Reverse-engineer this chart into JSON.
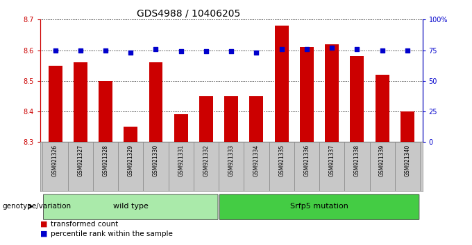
{
  "title": "GDS4988 / 10406205",
  "samples": [
    "GSM921326",
    "GSM921327",
    "GSM921328",
    "GSM921329",
    "GSM921330",
    "GSM921331",
    "GSM921332",
    "GSM921333",
    "GSM921334",
    "GSM921335",
    "GSM921336",
    "GSM921337",
    "GSM921338",
    "GSM921339",
    "GSM921340"
  ],
  "transformed_counts": [
    8.55,
    8.56,
    8.5,
    8.35,
    8.56,
    8.39,
    8.45,
    8.45,
    8.45,
    8.68,
    8.61,
    8.62,
    8.58,
    8.52,
    8.4
  ],
  "percentile_ranks": [
    75,
    75,
    75,
    73,
    76,
    74,
    74,
    74,
    73,
    76,
    76,
    77,
    76,
    75,
    75
  ],
  "ylim_left": [
    8.3,
    8.7
  ],
  "ylim_right": [
    0,
    100
  ],
  "right_ticks": [
    0,
    25,
    50,
    75,
    100
  ],
  "right_tick_labels": [
    "0",
    "25",
    "50",
    "75",
    "100%"
  ],
  "left_ticks": [
    8.3,
    8.4,
    8.5,
    8.6,
    8.7
  ],
  "bar_color": "#cc0000",
  "dot_color": "#0000cc",
  "bar_bottom": 8.3,
  "groups": [
    {
      "label": "wild type",
      "start": 0,
      "end": 7,
      "color": "#aaeaaa"
    },
    {
      "label": "Srfp5 mutation",
      "start": 7,
      "end": 15,
      "color": "#44cc44"
    }
  ],
  "group_row_label": "genotype/variation",
  "legend_bar_label": "transformed count",
  "legend_dot_label": "percentile rank within the sample",
  "grid_color": "#000000",
  "bg_plot": "#ffffff",
  "xtick_bg": "#c8c8c8",
  "left_axis_color": "#cc0000",
  "right_axis_color": "#0000cc",
  "title_fontsize": 10,
  "tick_fontsize": 7,
  "bar_width": 0.55,
  "n_samples": 15,
  "wild_type_count": 7,
  "mutation_count": 8
}
